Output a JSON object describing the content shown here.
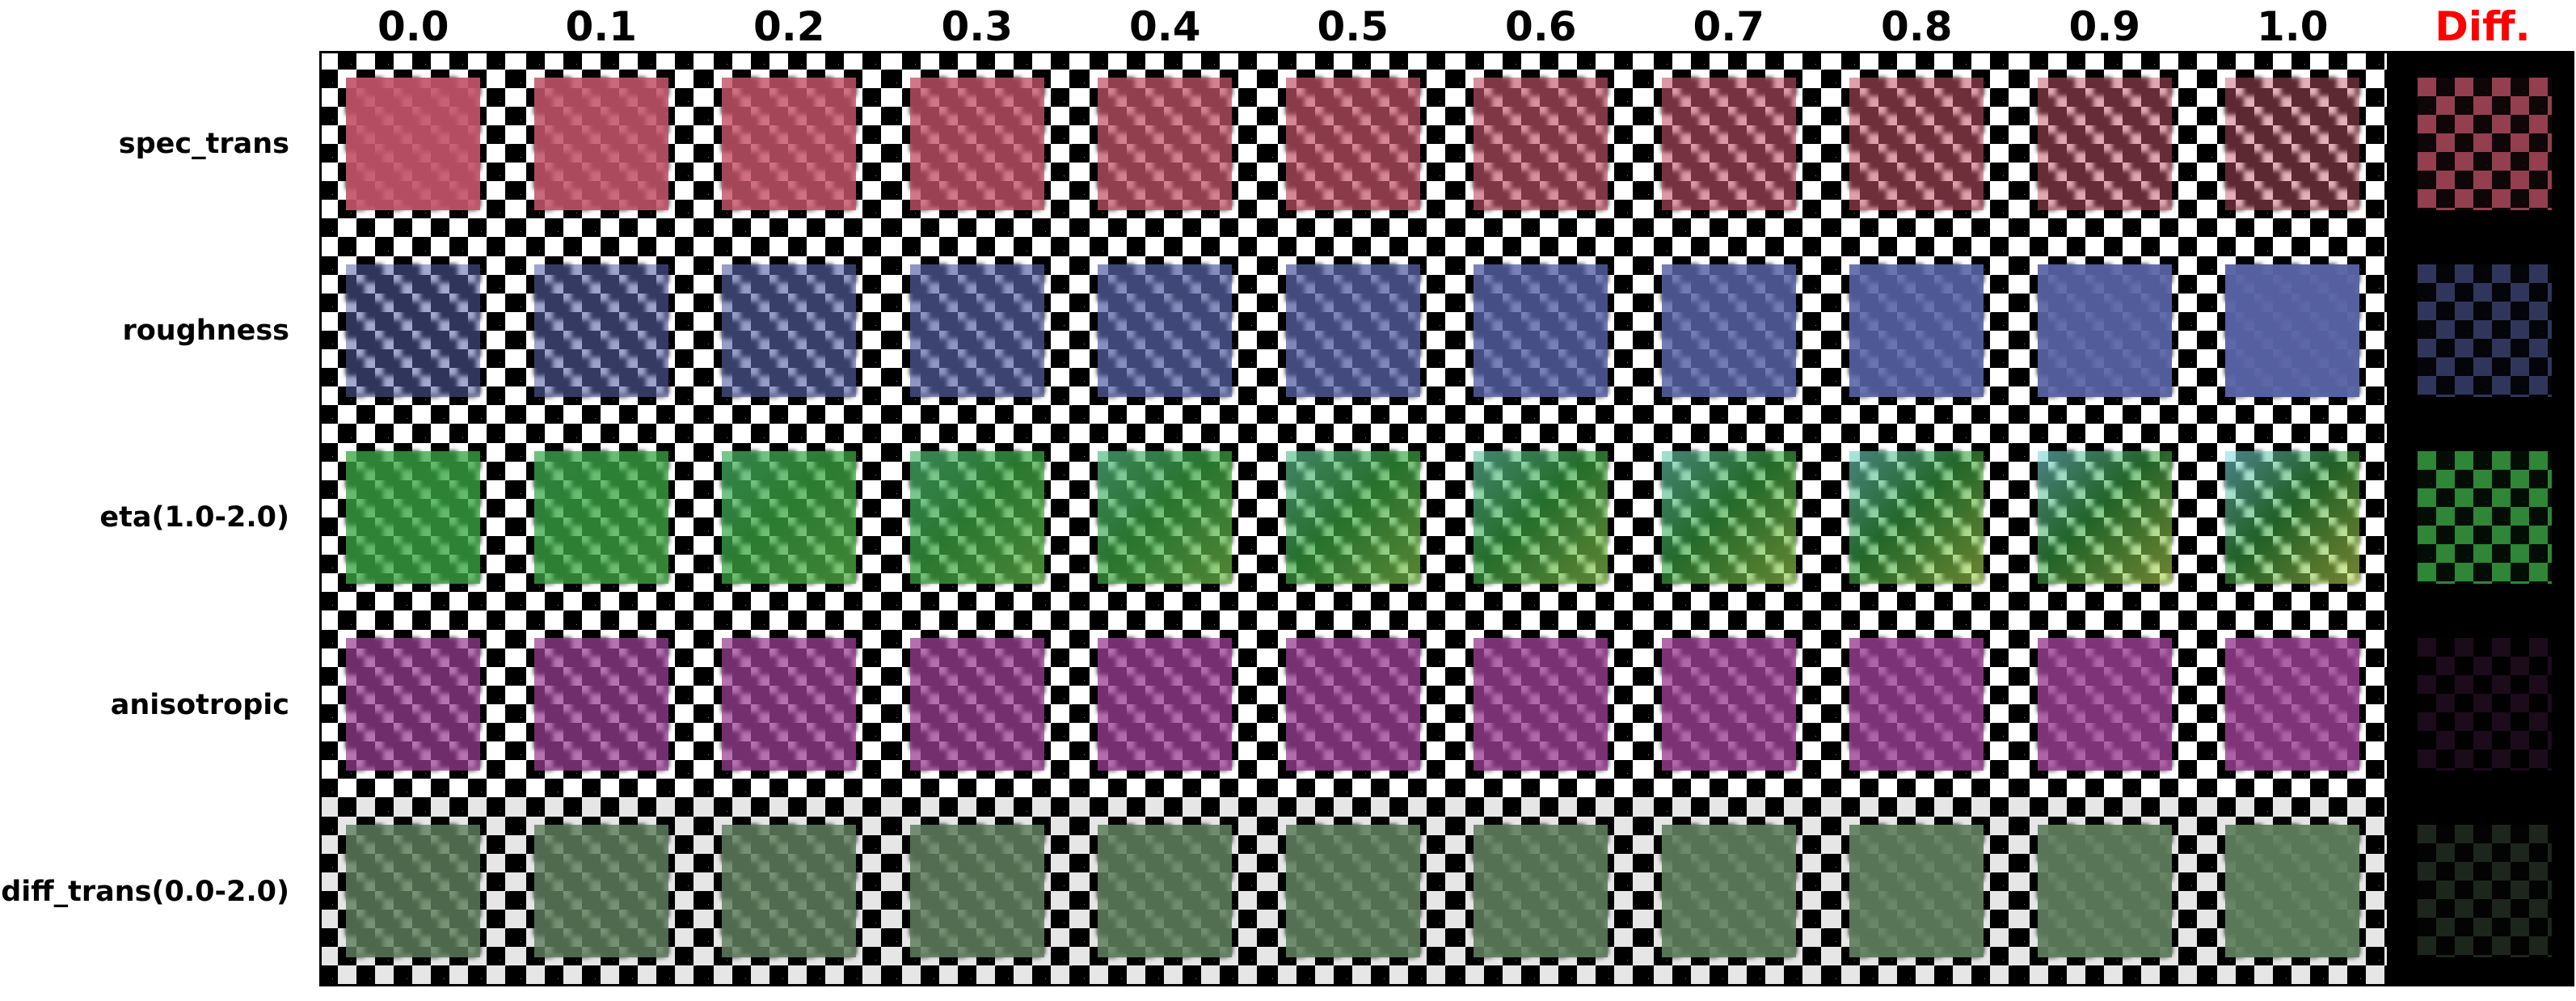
{
  "columns": [
    "0.0",
    "0.1",
    "0.2",
    "0.3",
    "0.4",
    "0.5",
    "0.6",
    "0.7",
    "0.8",
    "0.9",
    "1.0"
  ],
  "diff_label": "Diff.",
  "rows": [
    {
      "label": "spec_trans",
      "color": "#c4546a"
    },
    {
      "label": "roughness",
      "color": "#5863a6"
    },
    {
      "label": "eta(1.0-2.0)",
      "color": "#3aa744"
    },
    {
      "label": "anisotropic",
      "color": "#9b3f94"
    },
    {
      "label": "diff_trans(0.0-2.0)",
      "color": "#5f7f5e"
    }
  ]
}
